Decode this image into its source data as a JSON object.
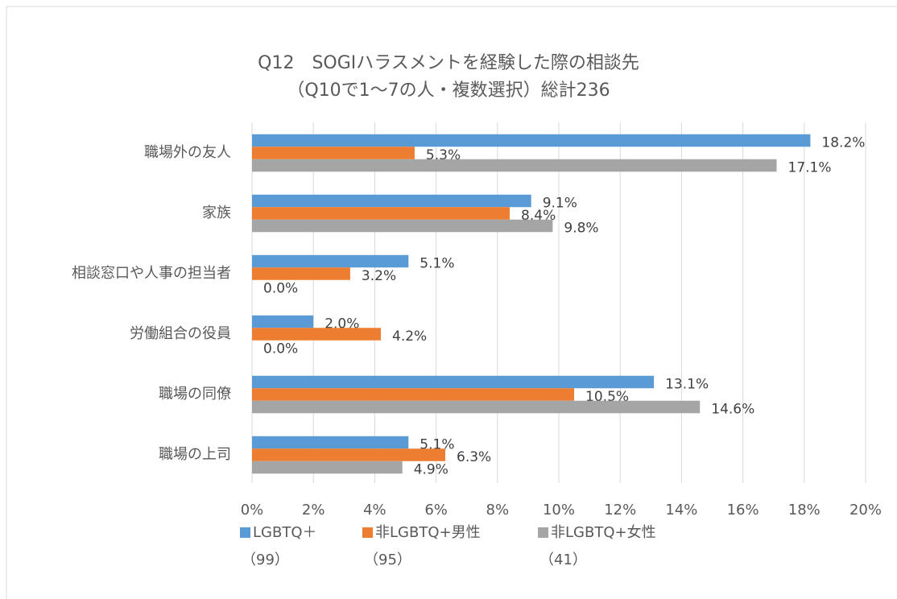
{
  "chart_data": {
    "type": "barh",
    "title": "Q12　SOGIハラスメントを経験した際の相談先",
    "subtitle": "（Q10で1～7の人・複数選択）総計236",
    "categories": [
      "職場外の友人",
      "家族",
      "相談窓口や人事の担当者",
      "労働組合の役員",
      "職場の同僚",
      "職場の上司"
    ],
    "series": [
      {
        "name": "LGBTQ＋",
        "legend_note": "（99）",
        "color": "#5b9bd5",
        "values": [
          18.2,
          9.1,
          5.1,
          2.0,
          13.1,
          5.1
        ],
        "value_labels": [
          "18.2%",
          "9.1%",
          "5.1%",
          "2.0%",
          "13.1%",
          "5.1%"
        ]
      },
      {
        "name": "非LGBTQ+男性",
        "legend_note": "（95）",
        "color": "#ed7d31",
        "values": [
          5.3,
          8.4,
          3.2,
          4.2,
          10.5,
          6.3
        ],
        "value_labels": [
          "5.3%",
          "8.4%",
          "3.2%",
          "4.2%",
          "10.5%",
          "6.3%"
        ]
      },
      {
        "name": "非LGBTQ+女性",
        "legend_note": "（41）",
        "color": "#a5a5a5",
        "values": [
          17.1,
          9.8,
          0.0,
          0.0,
          14.6,
          4.9
        ],
        "value_labels": [
          "17.1%",
          "9.8%",
          "0.0%",
          "0.0%",
          "14.6%",
          "4.9%"
        ]
      }
    ],
    "xlim": [
      0,
      20
    ],
    "xticks": [
      {
        "value": 0,
        "label": "0%"
      },
      {
        "value": 2,
        "label": "2%"
      },
      {
        "value": 4,
        "label": "4%"
      },
      {
        "value": 6,
        "label": "6%"
      },
      {
        "value": 8,
        "label": "8%"
      },
      {
        "value": 10,
        "label": "10%"
      },
      {
        "value": 12,
        "label": "12%"
      },
      {
        "value": 14,
        "label": "14%"
      },
      {
        "value": 16,
        "label": "16%"
      },
      {
        "value": 18,
        "label": "18%"
      },
      {
        "value": 20,
        "label": "20%"
      }
    ],
    "grid": true
  }
}
